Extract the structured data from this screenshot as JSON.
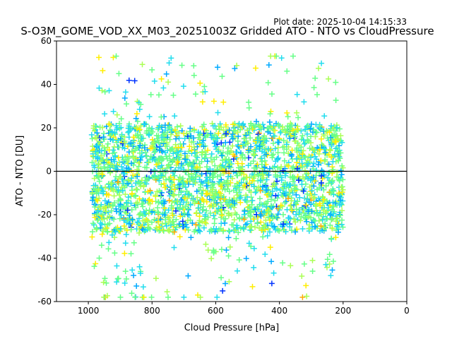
{
  "plot_date": "Plot date: 2025-10-04 14:15:33",
  "chart_data": {
    "type": "scatter",
    "title": "S-O3M_GOME_VOD_XX_M03_20251003Z Gridded ATO - NTO vs CloudPressure",
    "xlabel": "Cloud Pressure [hPa]",
    "ylabel": "ATO - NTO [DU]",
    "xlim": [
      1100,
      0
    ],
    "ylim": [
      -60,
      60
    ],
    "x_inverted": true,
    "xticks": [
      1000,
      800,
      600,
      400,
      200,
      0
    ],
    "yticks": [
      -60,
      -40,
      -20,
      0,
      20,
      40,
      60
    ],
    "marker": "+",
    "reference_line_y": 0,
    "grid": false,
    "color_groups": [
      {
        "color": "#66ff88"
      },
      {
        "color": "#22ddee"
      },
      {
        "color": "#00aaff"
      },
      {
        "color": "#ffee00"
      },
      {
        "color": "#aaff55"
      },
      {
        "color": "#0033ff"
      },
      {
        "color": "#ffaa00"
      }
    ],
    "cluster": {
      "x_range": [
        990,
        200
      ],
      "y_core_range": [
        -28,
        22
      ],
      "y_extent_range": [
        -58,
        53
      ]
    }
  }
}
